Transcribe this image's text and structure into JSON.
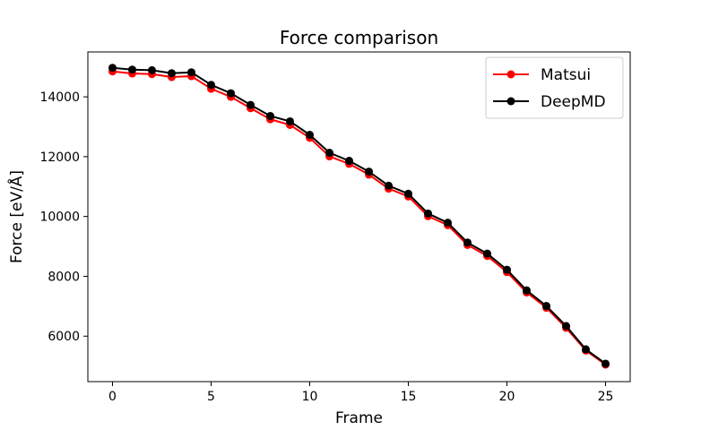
{
  "chart_data": {
    "type": "line",
    "title": "Force comparison",
    "xlabel": "Frame",
    "ylabel": "Force [eV/Å]",
    "xlim": [
      -1.25,
      26.25
    ],
    "ylim": [
      4480,
      15500
    ],
    "xticks": [
      0,
      5,
      10,
      15,
      20,
      25
    ],
    "yticks": [
      6000,
      8000,
      10000,
      12000,
      14000
    ],
    "grid": false,
    "legend_position": "top-right",
    "x": [
      0,
      1,
      2,
      3,
      4,
      5,
      6,
      7,
      8,
      9,
      10,
      11,
      12,
      13,
      14,
      15,
      16,
      17,
      18,
      19,
      20,
      21,
      22,
      23,
      24,
      25
    ],
    "series": [
      {
        "name": "Matsui",
        "color": "#ff0000",
        "values": [
          14850,
          14780,
          14760,
          14660,
          14690,
          14270,
          14000,
          13620,
          13250,
          13060,
          12630,
          12010,
          11760,
          11400,
          10930,
          10670,
          10010,
          9710,
          9050,
          8680,
          8140,
          7460,
          6950,
          6280,
          5520,
          5050
        ]
      },
      {
        "name": "DeepMD",
        "color": "#000000",
        "values": [
          14970,
          14910,
          14890,
          14790,
          14820,
          14400,
          14120,
          13730,
          13360,
          13180,
          12730,
          12130,
          11860,
          11500,
          11030,
          10760,
          10100,
          9790,
          9130,
          8760,
          8220,
          7530,
          7010,
          6340,
          5560,
          5080
        ]
      }
    ]
  }
}
